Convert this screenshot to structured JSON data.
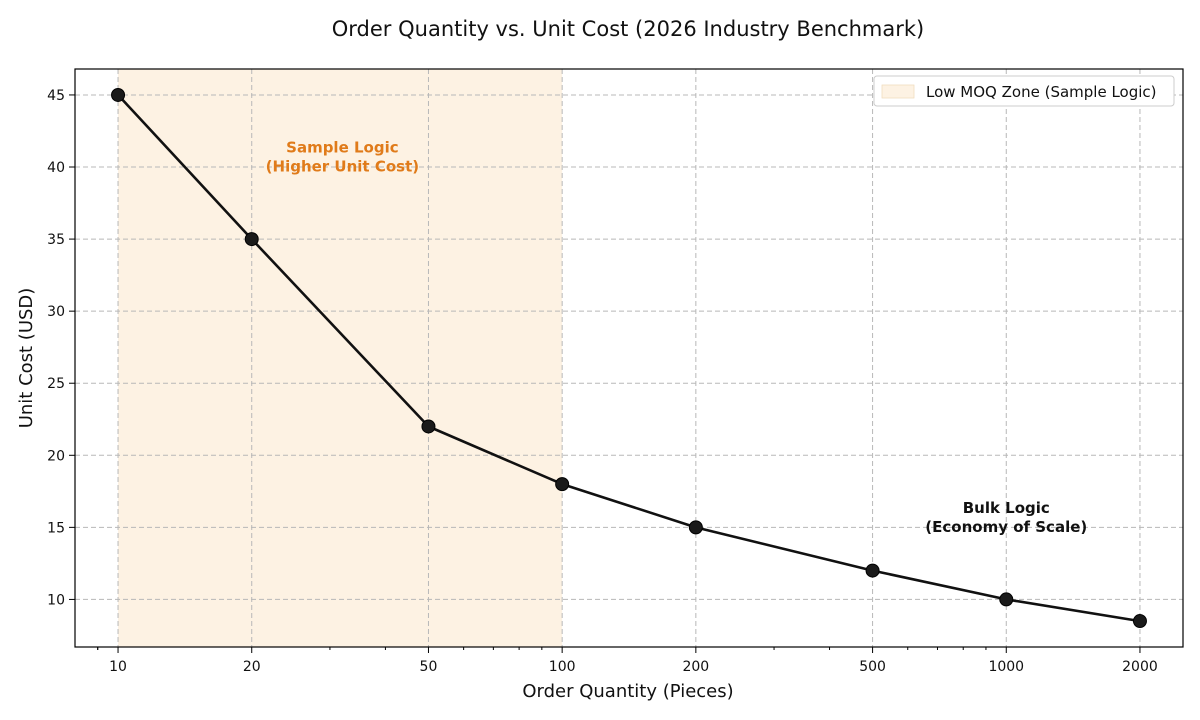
{
  "chart_data": {
    "type": "line",
    "title": "Order Quantity vs. Unit Cost (2026 Industry Benchmark)",
    "xlabel": "Order Quantity (Pieces)",
    "ylabel": "Unit Cost (USD)",
    "x_scale": "log",
    "xlim": [
      8,
      2500
    ],
    "ylim": [
      6.7,
      46.8
    ],
    "x_ticks": [
      10,
      20,
      50,
      100,
      200,
      500,
      1000,
      2000
    ],
    "x_tick_labels": [
      "10",
      "20",
      "50",
      "100",
      "200",
      "500",
      "1000",
      "2000"
    ],
    "y_ticks": [
      10,
      15,
      20,
      25,
      30,
      35,
      40,
      45
    ],
    "y_tick_labels": [
      "10",
      "15",
      "20",
      "25",
      "30",
      "35",
      "40",
      "45"
    ],
    "grid": true,
    "series": [
      {
        "color": "#111111",
        "x": [
          10,
          20,
          50,
          100,
          200,
          500,
          1000,
          2000
        ],
        "y": [
          45,
          35,
          22,
          18,
          15,
          12,
          10,
          8.5
        ]
      }
    ],
    "shaded_region": {
      "x_start": 10,
      "x_end": 100,
      "color": "#fdf2e3",
      "legend_label": "Low MOQ Zone (Sample Logic)"
    },
    "legend_position": "top-right",
    "annotations": [
      {
        "id": "sample",
        "lines": [
          "Sample Logic",
          "(Higher Unit Cost)"
        ],
        "x": 32,
        "y": 41,
        "color": "#e07b1a"
      },
      {
        "id": "bulk",
        "lines": [
          "Bulk Logic",
          "(Economy of Scale)"
        ],
        "x": 1000,
        "y": 16,
        "color": "#111111"
      }
    ]
  }
}
